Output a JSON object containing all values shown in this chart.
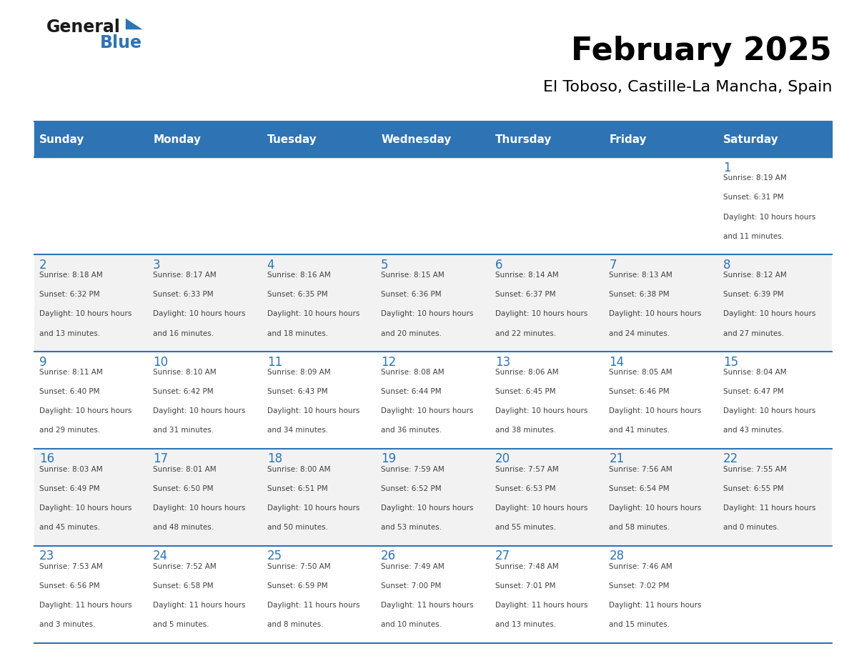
{
  "title": "February 2025",
  "subtitle": "El Toboso, Castille-La Mancha, Spain",
  "days_of_week": [
    "Sunday",
    "Monday",
    "Tuesday",
    "Wednesday",
    "Thursday",
    "Friday",
    "Saturday"
  ],
  "header_bg": "#2E74B5",
  "header_text": "#FFFFFF",
  "cell_bg_light": "#FFFFFF",
  "cell_bg_gray": "#F2F2F2",
  "border_color": "#2E74B5",
  "day_num_color": "#2E74B5",
  "info_text_color": "#404040",
  "logo_general_color": "#1a1a1a",
  "logo_blue_color": "#2E74B5",
  "calendar_data": [
    [
      null,
      null,
      null,
      null,
      null,
      null,
      {
        "day": 1,
        "sunrise": "8:19 AM",
        "sunset": "6:31 PM",
        "daylight": "10 hours and 11 minutes"
      }
    ],
    [
      {
        "day": 2,
        "sunrise": "8:18 AM",
        "sunset": "6:32 PM",
        "daylight": "10 hours and 13 minutes"
      },
      {
        "day": 3,
        "sunrise": "8:17 AM",
        "sunset": "6:33 PM",
        "daylight": "10 hours and 16 minutes"
      },
      {
        "day": 4,
        "sunrise": "8:16 AM",
        "sunset": "6:35 PM",
        "daylight": "10 hours and 18 minutes"
      },
      {
        "day": 5,
        "sunrise": "8:15 AM",
        "sunset": "6:36 PM",
        "daylight": "10 hours and 20 minutes"
      },
      {
        "day": 6,
        "sunrise": "8:14 AM",
        "sunset": "6:37 PM",
        "daylight": "10 hours and 22 minutes"
      },
      {
        "day": 7,
        "sunrise": "8:13 AM",
        "sunset": "6:38 PM",
        "daylight": "10 hours and 24 minutes"
      },
      {
        "day": 8,
        "sunrise": "8:12 AM",
        "sunset": "6:39 PM",
        "daylight": "10 hours and 27 minutes"
      }
    ],
    [
      {
        "day": 9,
        "sunrise": "8:11 AM",
        "sunset": "6:40 PM",
        "daylight": "10 hours and 29 minutes"
      },
      {
        "day": 10,
        "sunrise": "8:10 AM",
        "sunset": "6:42 PM",
        "daylight": "10 hours and 31 minutes"
      },
      {
        "day": 11,
        "sunrise": "8:09 AM",
        "sunset": "6:43 PM",
        "daylight": "10 hours and 34 minutes"
      },
      {
        "day": 12,
        "sunrise": "8:08 AM",
        "sunset": "6:44 PM",
        "daylight": "10 hours and 36 minutes"
      },
      {
        "day": 13,
        "sunrise": "8:06 AM",
        "sunset": "6:45 PM",
        "daylight": "10 hours and 38 minutes"
      },
      {
        "day": 14,
        "sunrise": "8:05 AM",
        "sunset": "6:46 PM",
        "daylight": "10 hours and 41 minutes"
      },
      {
        "day": 15,
        "sunrise": "8:04 AM",
        "sunset": "6:47 PM",
        "daylight": "10 hours and 43 minutes"
      }
    ],
    [
      {
        "day": 16,
        "sunrise": "8:03 AM",
        "sunset": "6:49 PM",
        "daylight": "10 hours and 45 minutes"
      },
      {
        "day": 17,
        "sunrise": "8:01 AM",
        "sunset": "6:50 PM",
        "daylight": "10 hours and 48 minutes"
      },
      {
        "day": 18,
        "sunrise": "8:00 AM",
        "sunset": "6:51 PM",
        "daylight": "10 hours and 50 minutes"
      },
      {
        "day": 19,
        "sunrise": "7:59 AM",
        "sunset": "6:52 PM",
        "daylight": "10 hours and 53 minutes"
      },
      {
        "day": 20,
        "sunrise": "7:57 AM",
        "sunset": "6:53 PM",
        "daylight": "10 hours and 55 minutes"
      },
      {
        "day": 21,
        "sunrise": "7:56 AM",
        "sunset": "6:54 PM",
        "daylight": "10 hours and 58 minutes"
      },
      {
        "day": 22,
        "sunrise": "7:55 AM",
        "sunset": "6:55 PM",
        "daylight": "11 hours and 0 minutes"
      }
    ],
    [
      {
        "day": 23,
        "sunrise": "7:53 AM",
        "sunset": "6:56 PM",
        "daylight": "11 hours and 3 minutes"
      },
      {
        "day": 24,
        "sunrise": "7:52 AM",
        "sunset": "6:58 PM",
        "daylight": "11 hours and 5 minutes"
      },
      {
        "day": 25,
        "sunrise": "7:50 AM",
        "sunset": "6:59 PM",
        "daylight": "11 hours and 8 minutes"
      },
      {
        "day": 26,
        "sunrise": "7:49 AM",
        "sunset": "7:00 PM",
        "daylight": "11 hours and 10 minutes"
      },
      {
        "day": 27,
        "sunrise": "7:48 AM",
        "sunset": "7:01 PM",
        "daylight": "11 hours and 13 minutes"
      },
      {
        "day": 28,
        "sunrise": "7:46 AM",
        "sunset": "7:02 PM",
        "daylight": "11 hours and 15 minutes"
      },
      null
    ]
  ]
}
